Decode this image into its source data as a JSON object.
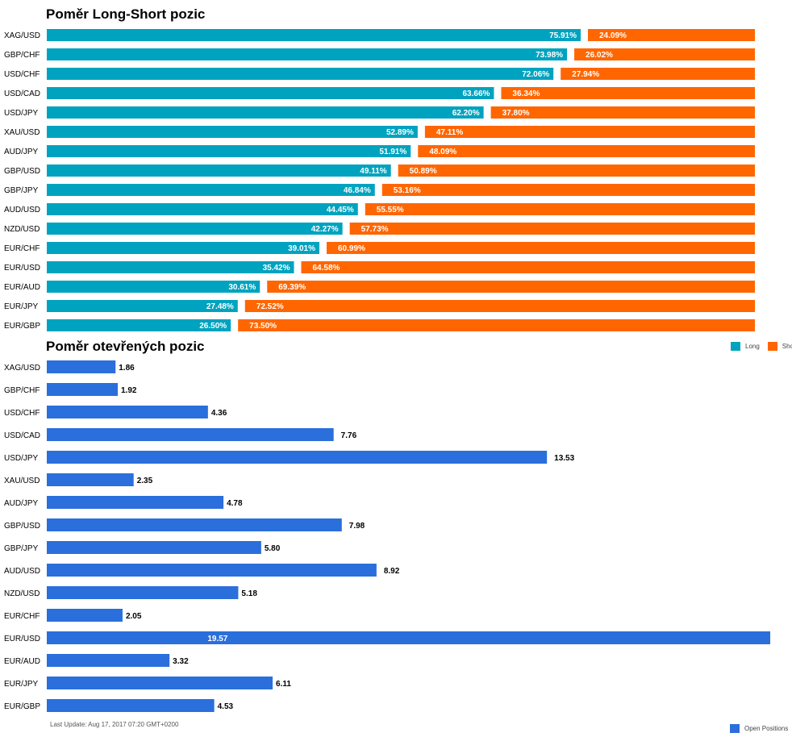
{
  "chart_data": [
    {
      "type": "bar",
      "orientation": "horizontal",
      "stacked": "percent",
      "title": "Poměr Long-Short pozic",
      "categories": [
        "XAG/USD",
        "GBP/CHF",
        "USD/CHF",
        "USD/CAD",
        "USD/JPY",
        "XAU/USD",
        "AUD/JPY",
        "GBP/USD",
        "GBP/JPY",
        "AUD/USD",
        "NZD/USD",
        "EUR/CHF",
        "EUR/USD",
        "EUR/AUD",
        "EUR/JPY",
        "EUR/GBP"
      ],
      "series": [
        {
          "name": "Long",
          "color": "#00a3bf",
          "values": [
            75.91,
            73.98,
            72.06,
            63.66,
            62.2,
            52.89,
            51.91,
            49.11,
            46.84,
            44.45,
            42.27,
            39.01,
            35.42,
            30.61,
            27.48,
            26.5
          ],
          "labels": [
            "75.91%",
            "73.98%",
            "72.06%",
            "63.66%",
            "62.20%",
            "52.89%",
            "51.91%",
            "49.11%",
            "46.84%",
            "44.45%",
            "42.27%",
            "39.01%",
            "35.42%",
            "30.61%",
            "27.48%",
            "26.50%"
          ]
        },
        {
          "name": "Short",
          "color": "#ff6600",
          "values": [
            24.09,
            26.02,
            27.94,
            36.34,
            37.8,
            47.11,
            48.09,
            50.89,
            53.16,
            55.55,
            57.73,
            60.99,
            64.58,
            69.39,
            72.52,
            73.5
          ],
          "labels": [
            "24.09%",
            "26.02%",
            "27.94%",
            "36.34%",
            "37.80%",
            "47.11%",
            "48.09%",
            "50.89%",
            "53.16%",
            "55.55%",
            "57.73%",
            "60.99%",
            "64.58%",
            "69.39%",
            "72.52%",
            "73.50%"
          ]
        }
      ],
      "legend": "top-right"
    },
    {
      "type": "bar",
      "orientation": "horizontal",
      "title": "Poměr otevřených pozic",
      "categories": [
        "XAG/USD",
        "GBP/CHF",
        "USD/CHF",
        "USD/CAD",
        "USD/JPY",
        "XAU/USD",
        "AUD/JPY",
        "GBP/USD",
        "GBP/JPY",
        "AUD/USD",
        "NZD/USD",
        "EUR/CHF",
        "EUR/USD",
        "EUR/AUD",
        "EUR/JPY",
        "EUR/GBP"
      ],
      "series": [
        {
          "name": "Open Positions",
          "color": "#2a6fdb",
          "values": [
            1.86,
            1.92,
            4.36,
            7.76,
            13.53,
            2.35,
            4.78,
            7.98,
            5.8,
            8.92,
            5.18,
            2.05,
            19.57,
            3.32,
            6.11,
            4.53
          ],
          "labels": [
            "1.86",
            "1.92",
            "4.36",
            "7.76",
            "13.53",
            "2.35",
            "4.78",
            "7.98",
            "5.80",
            "8.92",
            "5.18",
            "2.05",
            "19.57",
            "3.32",
            "6.11",
            "4.53"
          ]
        }
      ],
      "xlim": [
        0,
        19.57
      ],
      "legend": "bottom-right"
    }
  ],
  "footer": "Last Update: Aug 17, 2017 07:20 GMT+0200"
}
